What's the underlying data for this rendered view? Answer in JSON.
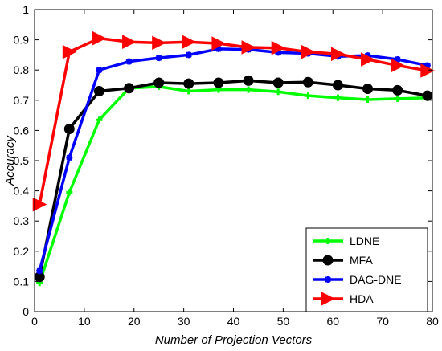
{
  "chart_data": {
    "type": "line",
    "title": "",
    "xlabel": "Number of Projection Vectors",
    "ylabel": "Accuracy",
    "xlim": [
      0,
      80
    ],
    "ylim": [
      0,
      1
    ],
    "xticks": [
      0,
      10,
      20,
      30,
      40,
      50,
      60,
      70,
      80
    ],
    "yticks": [
      0,
      0.1,
      0.2,
      0.3,
      0.4,
      0.5,
      0.6,
      0.7,
      0.8,
      0.9,
      1
    ],
    "grid": false,
    "legend_position": "bottom-right",
    "x": [
      1,
      7,
      13,
      19,
      25,
      31,
      37,
      43,
      49,
      55,
      61,
      67,
      73,
      79
    ],
    "series": [
      {
        "name": "LDNE",
        "color": "#00ff00",
        "marker": "plus",
        "values": [
          0.095,
          0.395,
          0.635,
          0.74,
          0.745,
          0.73,
          0.735,
          0.735,
          0.728,
          0.715,
          0.708,
          0.702,
          0.705,
          0.708
        ]
      },
      {
        "name": "MFA",
        "color": "#000000",
        "marker": "circle",
        "values": [
          0.115,
          0.605,
          0.73,
          0.74,
          0.758,
          0.755,
          0.758,
          0.765,
          0.758,
          0.76,
          0.75,
          0.738,
          0.733,
          0.715
        ]
      },
      {
        "name": "DAG-DNE",
        "color": "#0000ff",
        "marker": "star",
        "values": [
          0.135,
          0.51,
          0.8,
          0.828,
          0.84,
          0.85,
          0.87,
          0.868,
          0.858,
          0.855,
          0.845,
          0.848,
          0.835,
          0.815
        ]
      },
      {
        "name": "HDA",
        "color": "#ff0000",
        "marker": "triangle-right",
        "values": [
          0.355,
          0.86,
          0.905,
          0.893,
          0.89,
          0.893,
          0.888,
          0.875,
          0.873,
          0.86,
          0.853,
          0.835,
          0.815,
          0.798
        ]
      }
    ]
  }
}
